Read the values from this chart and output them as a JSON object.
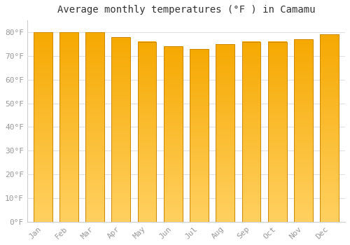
{
  "title": "Average monthly temperatures (°F ) in Camamu",
  "months": [
    "Jan",
    "Feb",
    "Mar",
    "Apr",
    "May",
    "Jun",
    "Jul",
    "Aug",
    "Sep",
    "Oct",
    "Nov",
    "Dec"
  ],
  "values": [
    80,
    80,
    80,
    78,
    76,
    74,
    73,
    75,
    76,
    76,
    77,
    79
  ],
  "bar_color_top": "#F5A800",
  "bar_color_mid": "#FFC020",
  "bar_color_bottom": "#FFD060",
  "bar_edge_color": "#CC8800",
  "background_color": "#FFFFFF",
  "grid_color": "#E0E0E0",
  "yticks": [
    0,
    10,
    20,
    30,
    40,
    50,
    60,
    70,
    80
  ],
  "ylim": [
    0,
    85
  ],
  "title_fontsize": 10,
  "tick_fontsize": 8,
  "font_family": "monospace"
}
